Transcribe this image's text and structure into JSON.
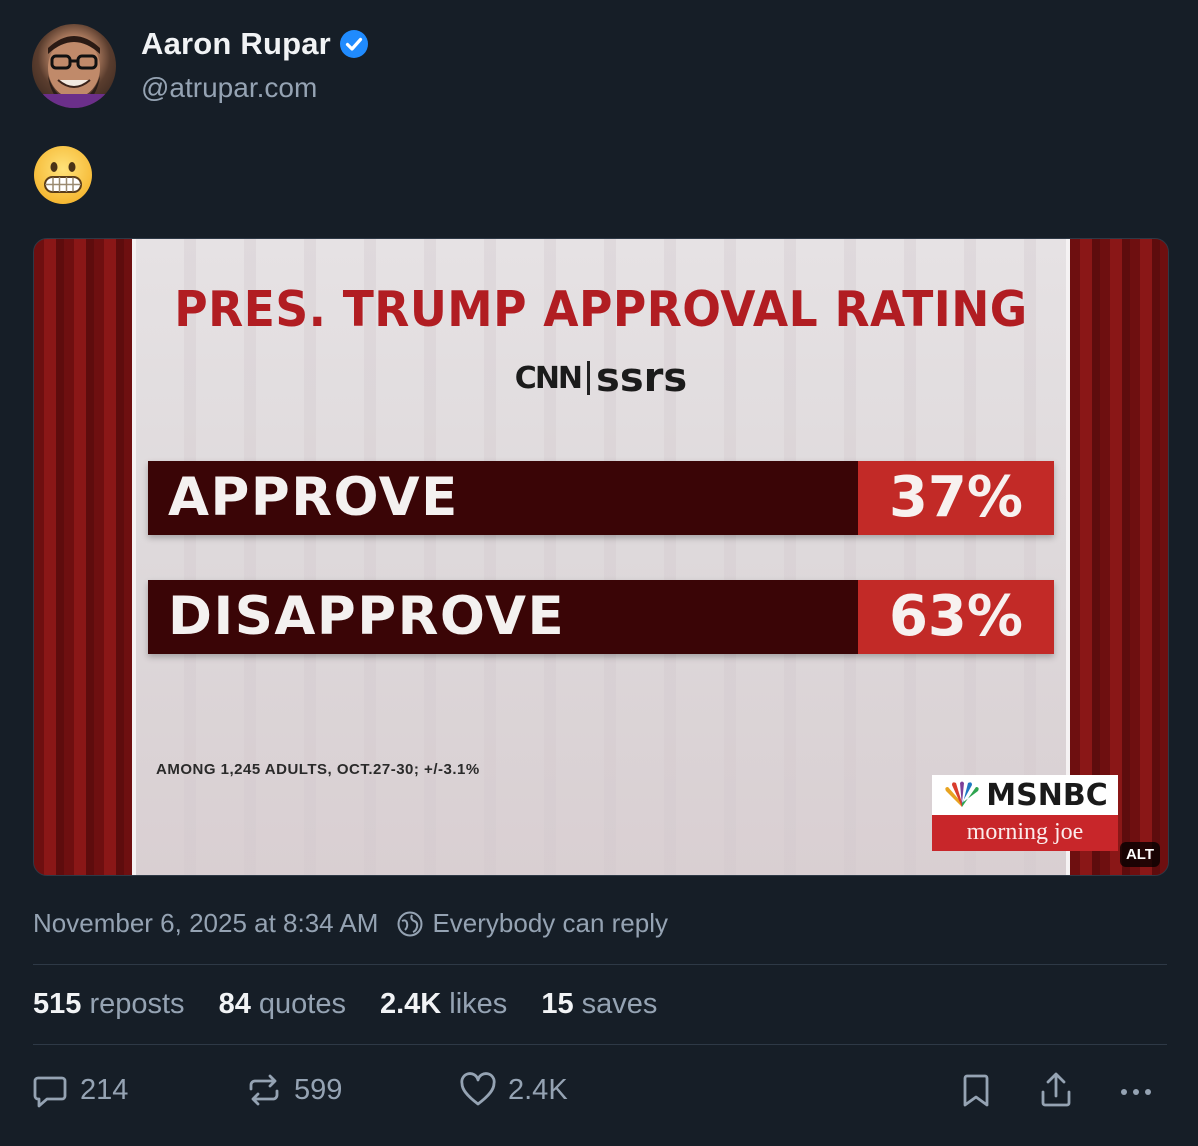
{
  "author": {
    "display_name": "Aaron Rupar",
    "handle": "@atrupar.com"
  },
  "post": {
    "text_emoji": "grimacing-face",
    "timestamp": "November 6, 2025 at 8:34 AM",
    "reply_setting": "Everybody can reply"
  },
  "media": {
    "alt_badge": "ALT",
    "graphic": {
      "title": "PRES. TRUMP APPROVAL RATING",
      "source_left": "CNN",
      "source_right": "ssrs",
      "footnote": "AMONG 1,245 ADULTS, OCT.27-30; +/-3.1%",
      "network": "MSNBC",
      "show": "morning joe",
      "rows": [
        {
          "label": "APPROVE",
          "value": "37%"
        },
        {
          "label": "DISAPPROVE",
          "value": "63%"
        }
      ]
    }
  },
  "stats": [
    {
      "num": "515",
      "label": "reposts"
    },
    {
      "num": "84",
      "label": "quotes"
    },
    {
      "num": "2.4K",
      "label": "likes"
    },
    {
      "num": "15",
      "label": "saves"
    }
  ],
  "actions": {
    "reply_count": "214",
    "repost_count": "599",
    "like_count": "2.4K"
  },
  "colors": {
    "background": "#161e27",
    "verified": "#208bfe",
    "muted_text": "#95a3b3",
    "graphic_red": "#b11d22"
  }
}
